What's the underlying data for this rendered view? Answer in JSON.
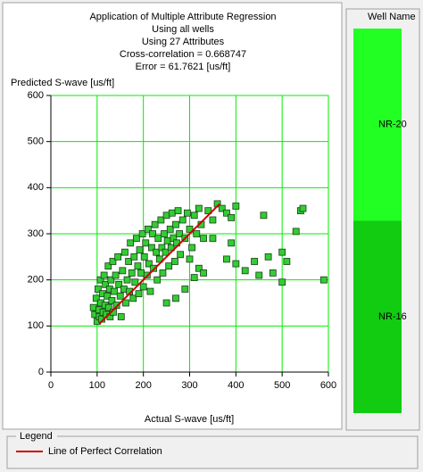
{
  "chart_data": {
    "type": "scatter",
    "title": "Application of Multiple Attribute Regression",
    "subtitles": [
      "Using all wells",
      "Using 27 Attributes",
      "Cross-correlation = 0.668747",
      "Error = 61.7621 [us/ft]"
    ],
    "x_label": "Actual S-wave [us/ft]",
    "y_label": "Predicted S-wave [us/ft]",
    "xlim": [
      0,
      600
    ],
    "ylim": [
      0,
      600
    ],
    "xticks": [
      0,
      100,
      200,
      300,
      400,
      500,
      600
    ],
    "yticks": [
      0,
      100,
      200,
      300,
      400,
      500,
      600
    ],
    "grid": true,
    "grid_color": "#00ee00",
    "points": {
      "color": "#33cc33",
      "x": [
        92,
        95,
        98,
        100,
        102,
        104,
        105,
        107,
        108,
        110,
        112,
        113,
        115,
        117,
        118,
        120,
        122,
        124,
        125,
        127,
        128,
        130,
        132,
        134,
        135,
        137,
        140,
        142,
        145,
        147,
        150,
        152,
        155,
        158,
        160,
        162,
        165,
        168,
        170,
        172,
        175,
        178,
        180,
        182,
        185,
        188,
        190,
        192,
        195,
        198,
        200,
        202,
        205,
        208,
        210,
        212,
        215,
        218,
        220,
        222,
        225,
        228,
        230,
        232,
        235,
        238,
        240,
        242,
        245,
        248,
        250,
        252,
        255,
        258,
        260,
        262,
        265,
        268,
        270,
        272,
        275,
        278,
        280,
        285,
        290,
        295,
        300,
        305,
        310,
        315,
        320,
        325,
        330,
        340,
        350,
        360,
        370,
        380,
        390,
        400,
        300,
        320,
        350,
        380,
        390,
        400,
        420,
        440,
        450,
        460,
        470,
        480,
        500,
        500,
        510,
        530,
        540,
        545,
        590,
        310,
        330,
        290,
        270,
        250
      ],
      "y": [
        140,
        125,
        160,
        110,
        180,
        135,
        120,
        200,
        150,
        115,
        170,
        130,
        210,
        145,
        190,
        125,
        165,
        230,
        140,
        180,
        120,
        200,
        155,
        240,
        130,
        175,
        210,
        145,
        250,
        190,
        165,
        120,
        220,
        180,
        260,
        150,
        200,
        240,
        175,
        280,
        215,
        160,
        250,
        195,
        290,
        230,
        170,
        265,
        215,
        300,
        185,
        250,
        280,
        210,
        310,
        235,
        175,
        270,
        300,
        225,
        320,
        260,
        200,
        290,
        245,
        330,
        270,
        215,
        300,
        260,
        340,
        285,
        230,
        310,
        270,
        345,
        290,
        240,
        320,
        280,
        350,
        300,
        255,
        330,
        290,
        345,
        310,
        270,
        340,
        300,
        355,
        320,
        290,
        350,
        330,
        365,
        355,
        345,
        335,
        360,
        245,
        225,
        290,
        245,
        280,
        235,
        220,
        240,
        210,
        340,
        250,
        215,
        195,
        260,
        240,
        305,
        350,
        355,
        200,
        205,
        215,
        180,
        160,
        150
      ]
    },
    "reference_line": {
      "name": "Line of Perfect Correlation",
      "color": "#cc0000",
      "x": [
        105,
        365
      ],
      "y": [
        105,
        365
      ]
    },
    "legend_title": "Legend",
    "wells_title": "Well Name",
    "wells": [
      {
        "name": "NR-20",
        "color": "#22ff22"
      },
      {
        "name": "NR-16",
        "color": "#11cc11"
      }
    ]
  }
}
